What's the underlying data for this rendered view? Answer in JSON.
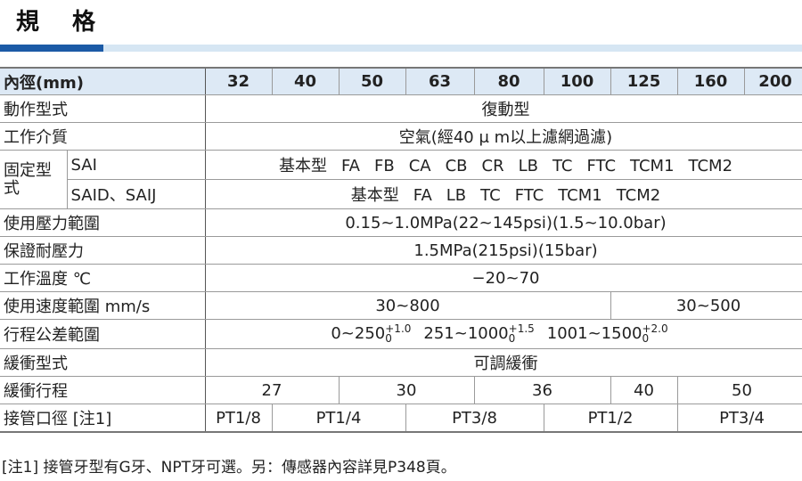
{
  "title": "規 格",
  "header": {
    "label": "內徑(mm)",
    "bores": [
      "32",
      "40",
      "50",
      "63",
      "80",
      "100",
      "125",
      "160",
      "200"
    ]
  },
  "rows": {
    "action": {
      "label": "動作型式",
      "value": "復動型"
    },
    "medium": {
      "label": "工作介質",
      "value": "空氣(經40 μ m以上濾網過濾)"
    },
    "mount": {
      "label": "固定型式",
      "sai": {
        "label": "SAI",
        "types": [
          "基本型",
          "FA",
          "FB",
          "CA",
          "CB",
          "CR",
          "LB",
          "TC",
          "FTC",
          "TCM1",
          "TCM2"
        ]
      },
      "said": {
        "label": "SAID、SAIJ",
        "types": [
          "基本型",
          "FA",
          "LB",
          "TC",
          "FTC",
          "TCM1",
          "TCM2"
        ]
      }
    },
    "pressure": {
      "label": "使用壓力範圍",
      "value": "0.15~1.0MPa(22~145psi)(1.5~10.0bar)"
    },
    "proof": {
      "label": "保證耐壓力",
      "value": "1.5MPa(215psi)(15bar)"
    },
    "temp": {
      "label": "工作溫度 ℃",
      "value": "−20~70"
    },
    "speed": {
      "label": "使用速度範圍 mm/s",
      "values": [
        "30~800",
        "30~500"
      ]
    },
    "tolerance": {
      "label": "行程公差範圍",
      "items": [
        {
          "range": "0~250",
          "plus": "+1.0",
          "minus": "0"
        },
        {
          "range": "251~1000",
          "plus": "+1.5",
          "minus": "0"
        },
        {
          "range": "1001~1500",
          "plus": "+2.0",
          "minus": "0"
        }
      ]
    },
    "cushion": {
      "label": "緩衝型式",
      "value": "可調緩衝"
    },
    "cushion_stroke": {
      "label": "緩衝行程",
      "values": [
        "27",
        "30",
        "36",
        "40",
        "50"
      ]
    },
    "port": {
      "label": "接管口徑 [注1]",
      "values": [
        "PT1/8",
        "PT1/4",
        "PT3/8",
        "PT1/2",
        "PT3/4"
      ]
    }
  },
  "note": "[注1] 接管牙型有G牙、NPT牙可選。另：傳感器內容詳見P348頁。"
}
